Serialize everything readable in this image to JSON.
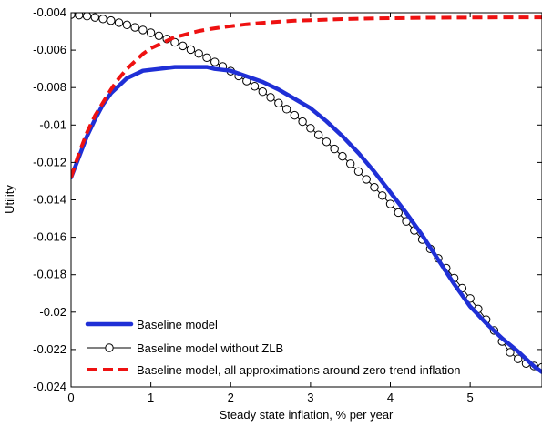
{
  "chart_data": {
    "type": "line",
    "title": "",
    "xlabel": "Steady state inflation, % per year",
    "ylabel": "Utility",
    "xlim": [
      0,
      5.9
    ],
    "ylim": [
      -0.024,
      -0.004
    ],
    "xticks": [
      0,
      1,
      2,
      3,
      4,
      5
    ],
    "xtick_labels": [
      "0",
      "1",
      "2",
      "3",
      "4",
      "5"
    ],
    "yticks": [
      -0.004,
      -0.006,
      -0.008,
      -0.01,
      -0.012,
      -0.014,
      -0.016,
      -0.018,
      -0.02,
      -0.022,
      -0.024
    ],
    "ytick_labels": [
      "-0.004",
      "-0.006",
      "-0.008",
      "-0.01",
      "-0.012",
      "-0.014",
      "-0.016",
      "-0.018",
      "-0.02",
      "-0.022",
      "-0.024"
    ],
    "grid": false,
    "legend_position": "bottom-left",
    "series": [
      {
        "name": "Baseline model",
        "color": "#1f2fd6",
        "style": "solid-thick",
        "x": [
          0,
          0.1,
          0.2,
          0.3,
          0.4,
          0.5,
          0.6,
          0.7,
          0.8,
          0.9,
          1.0,
          1.1,
          1.2,
          1.3,
          1.4,
          1.5,
          1.6,
          1.7,
          1.8,
          1.9,
          2.0,
          2.2,
          2.4,
          2.6,
          2.8,
          3.0,
          3.2,
          3.4,
          3.6,
          3.8,
          4.0,
          4.2,
          4.4,
          4.6,
          4.8,
          5.0,
          5.2,
          5.4,
          5.6,
          5.8,
          5.9
        ],
        "y": [
          -0.0128,
          -0.0117,
          -0.0106,
          -0.0097,
          -0.0089,
          -0.0083,
          -0.0079,
          -0.0075,
          -0.0073,
          -0.0071,
          -0.00705,
          -0.007,
          -0.00695,
          -0.0069,
          -0.0069,
          -0.0069,
          -0.0069,
          -0.0069,
          -0.007,
          -0.00705,
          -0.0071,
          -0.0074,
          -0.0077,
          -0.0081,
          -0.0086,
          -0.0091,
          -0.0098,
          -0.0106,
          -0.0115,
          -0.0125,
          -0.0136,
          -0.0147,
          -0.0159,
          -0.0172,
          -0.0185,
          -0.0197,
          -0.0206,
          -0.0214,
          -0.0221,
          -0.0229,
          -0.0232
        ]
      },
      {
        "name": "Baseline model without ZLB",
        "color": "#000000",
        "style": "line-circle",
        "x": [
          0,
          0.1,
          0.2,
          0.3,
          0.4,
          0.5,
          0.6,
          0.7,
          0.8,
          0.9,
          1.0,
          1.1,
          1.2,
          1.3,
          1.4,
          1.5,
          1.6,
          1.7,
          1.8,
          1.9,
          2.0,
          2.1,
          2.2,
          2.3,
          2.4,
          2.5,
          2.6,
          2.7,
          2.8,
          2.9,
          3.0,
          3.1,
          3.2,
          3.3,
          3.4,
          3.5,
          3.6,
          3.7,
          3.8,
          3.9,
          4.0,
          4.1,
          4.2,
          4.3,
          4.4,
          4.5,
          4.6,
          4.7,
          4.8,
          4.9,
          5.0,
          5.1,
          5.2,
          5.3,
          5.4,
          5.5,
          5.6,
          5.7,
          5.8,
          5.9
        ],
        "y": [
          -0.0041,
          -0.00413,
          -0.00418,
          -0.00425,
          -0.00433,
          -0.00442,
          -0.00453,
          -0.00465,
          -0.00478,
          -0.00492,
          -0.00507,
          -0.00523,
          -0.0054,
          -0.00558,
          -0.00577,
          -0.00597,
          -0.00618,
          -0.0064,
          -0.00663,
          -0.00687,
          -0.00712,
          -0.00738,
          -0.00765,
          -0.00793,
          -0.00822,
          -0.00852,
          -0.00883,
          -0.00915,
          -0.00948,
          -0.00982,
          -0.01017,
          -0.01053,
          -0.0109,
          -0.01128,
          -0.01167,
          -0.01207,
          -0.01248,
          -0.0129,
          -0.01333,
          -0.01377,
          -0.01422,
          -0.01468,
          -0.01515,
          -0.01563,
          -0.01612,
          -0.01662,
          -0.01713,
          -0.01765,
          -0.01818,
          -0.01872,
          -0.01927,
          -0.01983,
          -0.0204,
          -0.02098,
          -0.02157,
          -0.02215,
          -0.0225,
          -0.02275,
          -0.02288,
          -0.02295
        ]
      },
      {
        "name": "Baseline model, all approximations around zero trend inflation",
        "color": "#ee1111",
        "style": "dashed-thick",
        "x": [
          0,
          0.1,
          0.2,
          0.3,
          0.4,
          0.5,
          0.6,
          0.7,
          0.8,
          0.9,
          1.0,
          1.1,
          1.2,
          1.3,
          1.4,
          1.5,
          1.6,
          1.7,
          1.8,
          1.9,
          2.0,
          2.2,
          2.4,
          2.6,
          2.8,
          3.0,
          3.2,
          3.4,
          3.6,
          3.8,
          4.0,
          4.5,
          5.0,
          5.5,
          5.9
        ],
        "y": [
          -0.0128,
          -0.0115,
          -0.0104,
          -0.0095,
          -0.0088,
          -0.0081,
          -0.0075,
          -0.007,
          -0.0066,
          -0.0062,
          -0.0059,
          -0.0057,
          -0.0055,
          -0.0053,
          -0.0052,
          -0.00508,
          -0.00498,
          -0.0049,
          -0.00483,
          -0.00477,
          -0.00472,
          -0.00462,
          -0.00454,
          -0.00448,
          -0.00443,
          -0.0044,
          -0.00437,
          -0.00434,
          -0.00432,
          -0.0043,
          -0.00429,
          -0.00427,
          -0.00426,
          -0.00425,
          -0.00425
        ]
      }
    ]
  }
}
